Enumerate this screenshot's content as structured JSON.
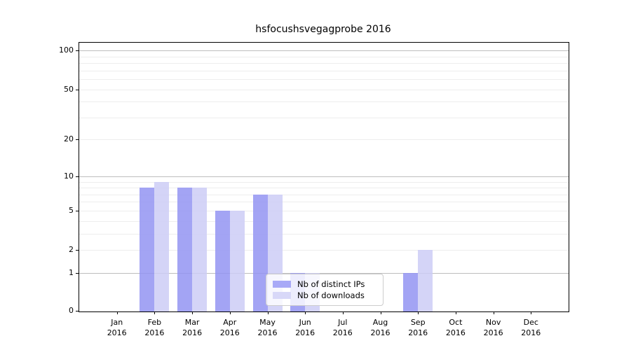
{
  "title": "hsfocushsvegagprobe 2016",
  "chart_data": {
    "type": "bar",
    "categories": [
      "Jan",
      "Feb",
      "Mar",
      "Apr",
      "May",
      "Jun",
      "Jul",
      "Aug",
      "Sep",
      "Oct",
      "Nov",
      "Dec"
    ],
    "category_year": "2016",
    "series": [
      {
        "name": "Nb of distinct IPs",
        "color": "#9394f2",
        "legend_color": "#a8a9f7",
        "values": [
          0,
          8,
          8,
          5,
          7,
          1,
          0,
          0,
          1,
          0,
          0,
          0
        ]
      },
      {
        "name": "Nb of downloads",
        "color": "#cdcdf6",
        "legend_color": "#d8d8f8",
        "values": [
          0,
          9,
          8,
          5,
          7,
          1,
          0,
          0,
          2,
          0,
          0,
          0
        ]
      }
    ],
    "yticks": [
      0,
      1,
      2,
      5,
      10,
      20,
      50,
      100
    ],
    "major_grid_values": [
      1,
      10,
      100
    ],
    "minor_grid_values": [
      2,
      3,
      4,
      5,
      6,
      7,
      8,
      9,
      20,
      30,
      40,
      50,
      60,
      70,
      80,
      90
    ],
    "scale": "log10(1+y)",
    "ylim": [
      0,
      110
    ],
    "xlabel": "",
    "ylabel": "",
    "grid": "both",
    "legend_position": "lower center",
    "colors": {
      "axis": "#000000",
      "grid_major": "#bdbdbd",
      "grid_minor": "#ededed",
      "background": "#ffffff"
    }
  }
}
